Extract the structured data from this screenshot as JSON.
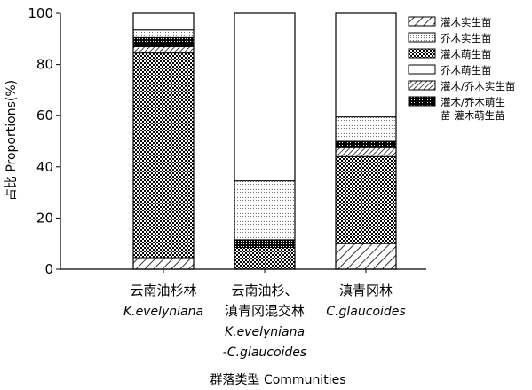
{
  "chart_data": {
    "type": "bar",
    "stacked": true,
    "ylabel": "占比 Proportions(%)",
    "xlabel": "群落类型 Communities",
    "ylim": [
      0,
      100
    ],
    "yticks": [
      0,
      20,
      40,
      60,
      80,
      100
    ],
    "grid": false,
    "legend_position": "top-right",
    "categories": [
      {
        "lines": [
          "云南油杉林"
        ],
        "italic_lines": [
          "K.evelyniana"
        ]
      },
      {
        "lines": [
          "云南油杉、",
          "滇青冈混交林"
        ],
        "italic_lines": [
          "K.evelyniana",
          "-C.glaucoides"
        ]
      },
      {
        "lines": [
          "滇青冈林"
        ],
        "italic_lines": [
          "C.glaucoides"
        ]
      }
    ],
    "series": [
      {
        "name": "灌木实生苗",
        "pattern": "diag-hatch",
        "values": [
          4.5,
          0,
          10
        ]
      },
      {
        "name": "乔木实生苗",
        "pattern": "fine-dots",
        "values": [
          0,
          0,
          0
        ]
      },
      {
        "name": "灌木萌生苗",
        "pattern": "checker",
        "values": [
          80,
          8.5,
          34
        ]
      },
      {
        "name": "乔木萌生苗",
        "pattern": "white",
        "values": [
          0,
          0,
          0
        ]
      },
      {
        "name": "灌木/乔木实生苗",
        "pattern": "diag-hatch-fine",
        "values": [
          2.5,
          0,
          3.5
        ]
      },
      {
        "name": "灌木/乔木萌生苗",
        "name_lines": [
          "灌木/乔木萌生",
          "苗 灌木萌生苗"
        ],
        "pattern": "dense-dots",
        "values": [
          3.5,
          3,
          2.5
        ]
      },
      {
        "name": "乔木实生苗",
        "pattern": "fine-dots",
        "values": [
          3,
          23,
          9.5
        ],
        "legend": false
      },
      {
        "name": "乔木萌生苗",
        "pattern": "white",
        "values": [
          6.5,
          65.5,
          40.5
        ],
        "legend": false
      }
    ]
  }
}
